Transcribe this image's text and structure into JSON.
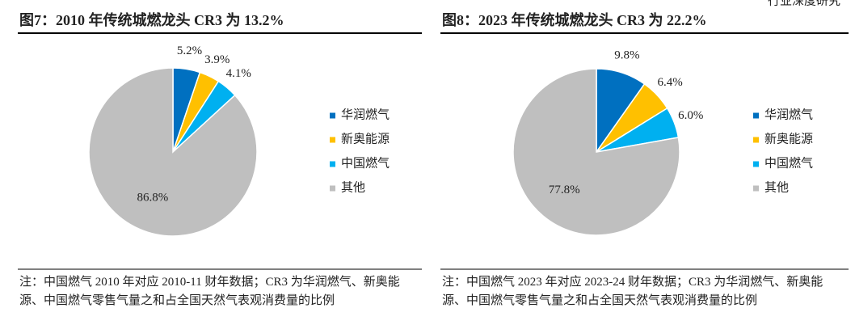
{
  "header": "行业深度研究",
  "chart_data": [
    {
      "type": "pie",
      "title": "图7：2010 年传统城燃龙头 CR3 为 13.2%",
      "categories": [
        "华润燃气",
        "新奥能源",
        "中国燃气",
        "其他"
      ],
      "values": [
        5.2,
        3.9,
        4.1,
        86.8
      ],
      "value_labels": [
        "5.2%",
        "3.9%",
        "4.1%",
        "86.8%"
      ],
      "colors": [
        "#0070c0",
        "#ffc000",
        "#00b0f0",
        "#bfbfbf"
      ],
      "note": "注：中国燃气 2010 年对应 2010-11 财年数据；CR3 为华润燃气、新奥能源、中国燃气零售气量之和占全国天然气表观消费量的比例"
    },
    {
      "type": "pie",
      "title": "图8：2023 年传统城燃龙头 CR3 为 22.2%",
      "categories": [
        "华润燃气",
        "新奥能源",
        "中国燃气",
        "其他"
      ],
      "values": [
        9.8,
        6.4,
        6.0,
        77.8
      ],
      "value_labels": [
        "9.8%",
        "6.4%",
        "6.0%",
        "77.8%"
      ],
      "colors": [
        "#0070c0",
        "#ffc000",
        "#00b0f0",
        "#bfbfbf"
      ],
      "note": "注：中国燃气 2023 年对应 2023-24 财年数据；CR3 为华润燃气、新奥能源、中国燃气零售气量之和占全国天然气表观消费量的比例"
    }
  ]
}
